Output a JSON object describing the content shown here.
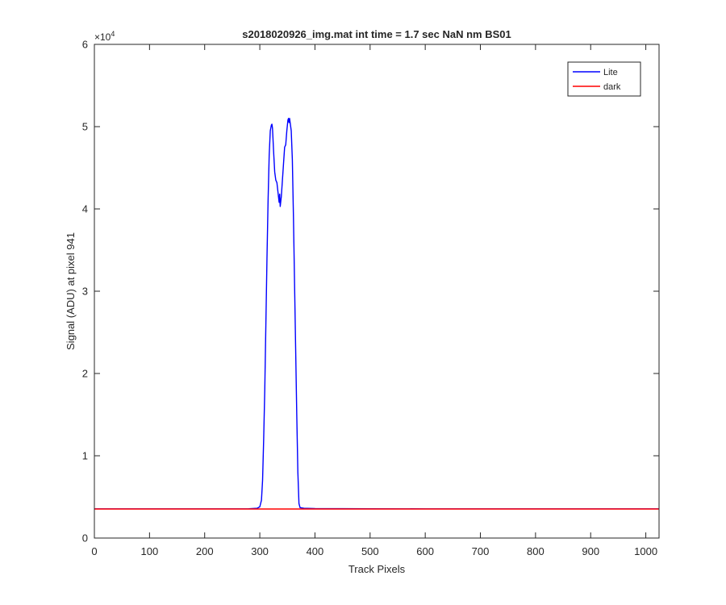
{
  "chart_data": {
    "type": "line",
    "title": "s2018020926_img.mat int time = 1.7 sec  NaN nm BS01",
    "xlabel": "Track Pixels",
    "ylabel": "Signal (ADU) at pixel 941",
    "y_exponent_label": "×10",
    "y_exponent_power": "4",
    "xlim": [
      0,
      1024
    ],
    "ylim": [
      0,
      60000
    ],
    "xticks": [
      0,
      100,
      200,
      300,
      400,
      500,
      600,
      700,
      800,
      900,
      1000
    ],
    "yticks": [
      0,
      10000,
      20000,
      30000,
      40000,
      50000,
      60000
    ],
    "xtick_labels": [
      "0",
      "100",
      "200",
      "300",
      "400",
      "500",
      "600",
      "700",
      "800",
      "900",
      "1000"
    ],
    "ytick_labels": [
      "0",
      "1",
      "2",
      "3",
      "4",
      "5",
      "6"
    ],
    "grid": false,
    "legend_position": "top-right",
    "series": [
      {
        "name": "Lite",
        "color": "#0000ff",
        "points": [
          [
            0,
            3550
          ],
          [
            100,
            3550
          ],
          [
            200,
            3550
          ],
          [
            280,
            3560
          ],
          [
            295,
            3620
          ],
          [
            300,
            3800
          ],
          [
            303,
            4600
          ],
          [
            305,
            7000
          ],
          [
            307,
            12000
          ],
          [
            309,
            18000
          ],
          [
            311,
            26000
          ],
          [
            313,
            34000
          ],
          [
            315,
            41000
          ],
          [
            317,
            46500
          ],
          [
            319,
            49500
          ],
          [
            321,
            50200
          ],
          [
            322,
            50300
          ],
          [
            323,
            49800
          ],
          [
            325,
            47000
          ],
          [
            327,
            44500
          ],
          [
            329,
            43500
          ],
          [
            331,
            43200
          ],
          [
            333,
            42000
          ],
          [
            335,
            40800
          ],
          [
            336,
            41800
          ],
          [
            337,
            40300
          ],
          [
            339,
            41500
          ],
          [
            341,
            43500
          ],
          [
            343,
            45500
          ],
          [
            345,
            47500
          ],
          [
            347,
            47800
          ],
          [
            349,
            49500
          ],
          [
            351,
            50800
          ],
          [
            352,
            51000
          ],
          [
            353,
            50500
          ],
          [
            354,
            51000
          ],
          [
            355,
            50500
          ],
          [
            357,
            49500
          ],
          [
            359,
            46000
          ],
          [
            361,
            39000
          ],
          [
            363,
            31000
          ],
          [
            365,
            23000
          ],
          [
            367,
            15000
          ],
          [
            369,
            8000
          ],
          [
            371,
            4200
          ],
          [
            373,
            3700
          ],
          [
            380,
            3620
          ],
          [
            400,
            3580
          ],
          [
            500,
            3560
          ],
          [
            600,
            3550
          ],
          [
            700,
            3550
          ],
          [
            800,
            3550
          ],
          [
            900,
            3550
          ],
          [
            1024,
            3550
          ]
        ]
      },
      {
        "name": "dark",
        "color": "#ff0000",
        "points": [
          [
            0,
            3530
          ],
          [
            1024,
            3530
          ]
        ]
      }
    ]
  }
}
